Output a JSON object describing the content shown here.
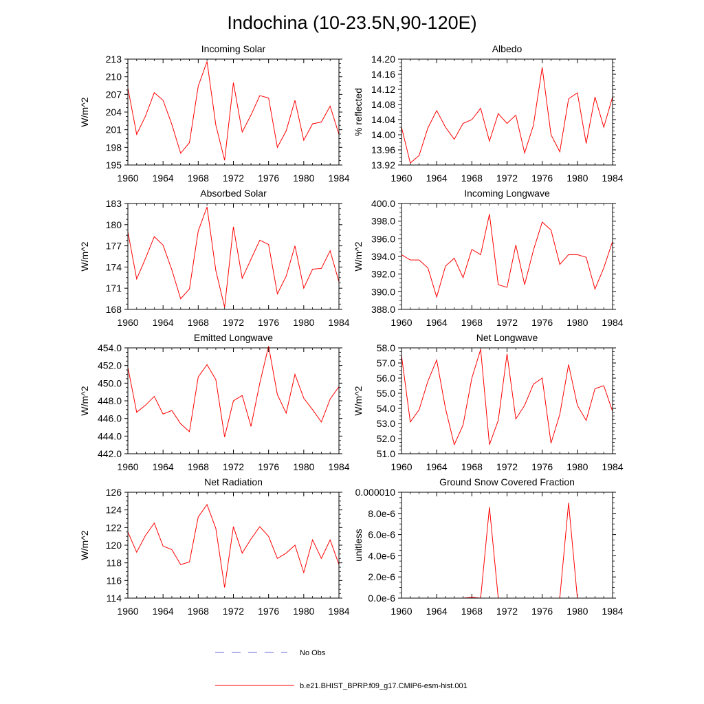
{
  "page": {
    "title": "Indochina (10-23.5N,90-120E)"
  },
  "legend": {
    "obs_label": "No Obs",
    "obs_color": "#6a6ad8",
    "model_label": "b.e21.BHIST_BPRP.f09_g17.CMIP6-esm-hist.001",
    "model_color": "#ff0000"
  },
  "chart_data": [
    {
      "type": "line",
      "title": "Incoming Solar",
      "ylabel": "W/m^2",
      "xlim": [
        1960,
        1984
      ],
      "ylim": [
        195,
        213
      ],
      "xticks": [
        "1960",
        "1964",
        "1968",
        "1972",
        "1976",
        "1980",
        "1984"
      ],
      "yticks": [
        "195",
        "198",
        "201",
        "204",
        "207",
        "210",
        "213"
      ],
      "series": [
        {
          "x": [
            1960,
            1961,
            1962,
            1963,
            1964,
            1965,
            1966,
            1967,
            1968,
            1969,
            1970,
            1971,
            1972,
            1973,
            1974,
            1975,
            1976,
            1977,
            1978,
            1979,
            1980,
            1981,
            1982,
            1983,
            1984
          ],
          "values": [
            208.1,
            200.2,
            203.3,
            207.3,
            206.0,
            201.9,
            197.0,
            198.8,
            208.4,
            212.6,
            201.8,
            195.8,
            209.0,
            200.6,
            203.5,
            206.8,
            206.4,
            198.0,
            200.8,
            206.0,
            199.2,
            202.0,
            202.3,
            205.0,
            200.2
          ]
        }
      ]
    },
    {
      "type": "line",
      "title": "Albedo",
      "ylabel": "% reflected",
      "xlim": [
        1960,
        1984
      ],
      "ylim": [
        13.92,
        14.2
      ],
      "xticks": [
        "1960",
        "1964",
        "1968",
        "1972",
        "1976",
        "1980",
        "1984"
      ],
      "yticks": [
        "13.92",
        "13.96",
        "14.00",
        "14.04",
        "14.08",
        "14.12",
        "14.16",
        "14.20"
      ],
      "series": [
        {
          "x": [
            1960,
            1961,
            1962,
            1963,
            1964,
            1965,
            1966,
            1967,
            1968,
            1969,
            1970,
            1971,
            1972,
            1973,
            1974,
            1975,
            1976,
            1977,
            1978,
            1979,
            1980,
            1981,
            1982,
            1983,
            1984
          ],
          "values": [
            14.02,
            13.925,
            13.945,
            14.018,
            14.064,
            14.02,
            13.988,
            14.03,
            14.04,
            14.07,
            13.983,
            14.056,
            14.03,
            14.052,
            13.952,
            14.025,
            14.178,
            14.0,
            13.955,
            14.095,
            14.111,
            13.977,
            14.1,
            14.02,
            14.1
          ]
        }
      ]
    },
    {
      "type": "line",
      "title": "Absorbed Solar",
      "ylabel": "W/m^2",
      "xlim": [
        1960,
        1984
      ],
      "ylim": [
        168,
        183
      ],
      "xticks": [
        "1960",
        "1964",
        "1968",
        "1972",
        "1976",
        "1980",
        "1984"
      ],
      "yticks": [
        "168",
        "171",
        "174",
        "177",
        "180",
        "183"
      ],
      "series": [
        {
          "x": [
            1960,
            1961,
            1962,
            1963,
            1964,
            1965,
            1966,
            1967,
            1968,
            1969,
            1970,
            1971,
            1972,
            1973,
            1974,
            1975,
            1976,
            1977,
            1978,
            1979,
            1980,
            1981,
            1982,
            1983,
            1984
          ],
          "values": [
            179.0,
            172.3,
            175.2,
            178.3,
            177.1,
            173.6,
            169.5,
            170.9,
            179.1,
            182.5,
            173.5,
            168.3,
            179.7,
            172.4,
            175.1,
            177.8,
            177.2,
            170.2,
            172.7,
            177.0,
            171.0,
            173.7,
            173.8,
            176.3,
            171.9
          ]
        }
      ]
    },
    {
      "type": "line",
      "title": "Incoming Longwave",
      "ylabel": "W/m^2",
      "xlim": [
        1960,
        1984
      ],
      "ylim": [
        388.0,
        400.0
      ],
      "xticks": [
        "1960",
        "1964",
        "1968",
        "1972",
        "1976",
        "1980",
        "1984"
      ],
      "yticks": [
        "388.0",
        "390.0",
        "392.0",
        "394.0",
        "396.0",
        "398.0",
        "400.0"
      ],
      "series": [
        {
          "x": [
            1960,
            1961,
            1962,
            1963,
            1964,
            1965,
            1966,
            1967,
            1968,
            1969,
            1970,
            1971,
            1972,
            1973,
            1974,
            1975,
            1976,
            1977,
            1978,
            1979,
            1980,
            1981,
            1982,
            1983,
            1984
          ],
          "values": [
            394.2,
            393.6,
            393.6,
            392.7,
            389.4,
            392.9,
            393.8,
            391.6,
            394.8,
            394.2,
            398.8,
            390.8,
            390.5,
            395.3,
            390.8,
            394.7,
            397.9,
            397.0,
            393.1,
            394.2,
            394.2,
            393.9,
            390.3,
            392.7,
            395.7
          ]
        }
      ]
    },
    {
      "type": "line",
      "title": "Emitted Longwave",
      "ylabel": "W/m^2",
      "xlim": [
        1960,
        1984
      ],
      "ylim": [
        442.0,
        454.0
      ],
      "xticks": [
        "1960",
        "1964",
        "1968",
        "1972",
        "1976",
        "1980",
        "1984"
      ],
      "yticks": [
        "442.0",
        "444.0",
        "446.0",
        "448.0",
        "450.0",
        "452.0",
        "454.0"
      ],
      "series": [
        {
          "x": [
            1960,
            1961,
            1962,
            1963,
            1964,
            1965,
            1966,
            1967,
            1968,
            1969,
            1970,
            1971,
            1972,
            1973,
            1974,
            1975,
            1976,
            1977,
            1978,
            1979,
            1980,
            1981,
            1982,
            1983,
            1984
          ],
          "values": [
            451.8,
            446.7,
            447.5,
            448.5,
            446.5,
            446.9,
            445.4,
            444.5,
            450.7,
            452.1,
            450.4,
            443.9,
            448.0,
            448.6,
            445.1,
            450.0,
            454.2,
            448.7,
            446.6,
            451.0,
            448.3,
            447.0,
            445.6,
            448.2,
            449.6
          ]
        }
      ]
    },
    {
      "type": "line",
      "title": "Net Longwave",
      "ylabel": "W/m^2",
      "xlim": [
        1960,
        1984
      ],
      "ylim": [
        51.0,
        58.0
      ],
      "xticks": [
        "1960",
        "1964",
        "1968",
        "1972",
        "1976",
        "1980",
        "1984"
      ],
      "yticks": [
        "51.0",
        "52.0",
        "53.0",
        "54.0",
        "55.0",
        "56.0",
        "57.0",
        "58.0"
      ],
      "series": [
        {
          "x": [
            1960,
            1961,
            1962,
            1963,
            1964,
            1965,
            1966,
            1967,
            1968,
            1969,
            1970,
            1971,
            1972,
            1973,
            1974,
            1975,
            1976,
            1977,
            1978,
            1979,
            1980,
            1981,
            1982,
            1983,
            1984
          ],
          "values": [
            57.5,
            53.1,
            53.9,
            55.8,
            57.2,
            54.0,
            51.6,
            52.9,
            56.0,
            57.9,
            51.6,
            53.2,
            57.6,
            53.3,
            54.2,
            55.6,
            56.0,
            51.7,
            53.6,
            56.9,
            54.2,
            53.2,
            55.3,
            55.5,
            53.8
          ]
        }
      ]
    },
    {
      "type": "line",
      "title": "Net Radiation",
      "ylabel": "W/m^2",
      "xlim": [
        1960,
        1984
      ],
      "ylim": [
        114,
        126
      ],
      "xticks": [
        "1960",
        "1964",
        "1968",
        "1972",
        "1976",
        "1980",
        "1984"
      ],
      "yticks": [
        "114",
        "116",
        "118",
        "120",
        "122",
        "124",
        "126"
      ],
      "series": [
        {
          "x": [
            1960,
            1961,
            1962,
            1963,
            1964,
            1965,
            1966,
            1967,
            1968,
            1969,
            1970,
            1971,
            1972,
            1973,
            1974,
            1975,
            1976,
            1977,
            1978,
            1979,
            1980,
            1981,
            1982,
            1983,
            1984
          ],
          "values": [
            121.5,
            119.2,
            121.1,
            122.5,
            119.9,
            119.5,
            117.8,
            118.1,
            123.2,
            124.6,
            121.9,
            115.2,
            122.1,
            119.1,
            120.7,
            122.1,
            121.0,
            118.5,
            119.1,
            120.0,
            116.9,
            120.6,
            118.5,
            120.6,
            117.8
          ]
        }
      ]
    },
    {
      "type": "line",
      "title": "Ground Snow Covered Fraction",
      "ylabel": "unitless",
      "xlim": [
        1960,
        1984
      ],
      "ylim": [
        0,
        1e-05
      ],
      "xticks": [
        "1960",
        "1964",
        "1968",
        "1972",
        "1976",
        "1980",
        "1984"
      ],
      "yticks": [
        "0.0e-6",
        "2.0e-6",
        "4.0e-6",
        "6.0e-6",
        "8.0e-6",
        "0.000010"
      ],
      "series": [
        {
          "x": [
            1960,
            1961,
            1962,
            1963,
            1964,
            1965,
            1966,
            1967,
            1968,
            1969,
            1970,
            1971,
            1972,
            1973,
            1974,
            1975,
            1976,
            1977,
            1978,
            1979,
            1980,
            1981,
            1982,
            1983,
            1984
          ],
          "values": [
            0,
            0,
            0,
            0,
            0,
            0,
            0,
            0,
            8e-08,
            0,
            8.6e-06,
            0,
            0,
            0,
            0,
            0,
            0,
            0,
            0,
            9e-06,
            0,
            0,
            0,
            0,
            0
          ]
        }
      ]
    }
  ]
}
